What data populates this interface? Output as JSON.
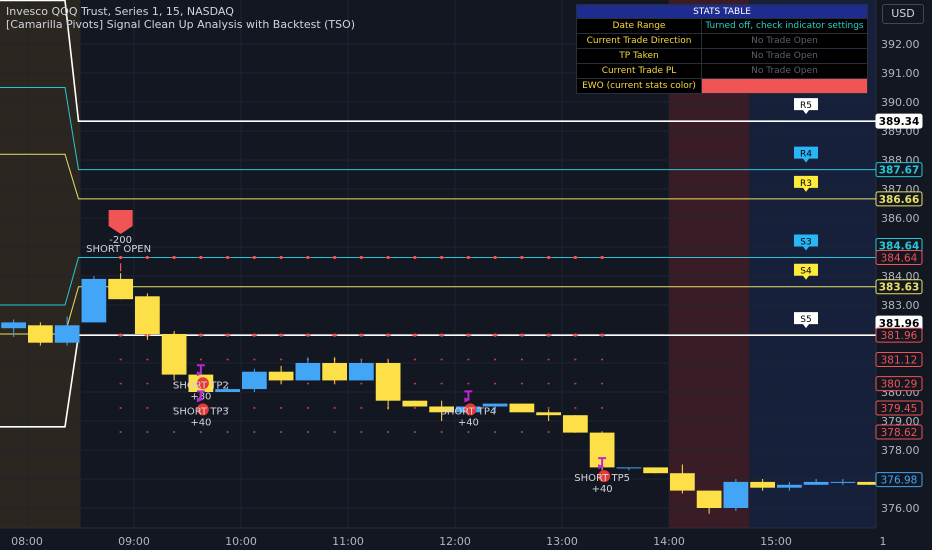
{
  "header": {
    "line1": "Invesco QQQ Trust, Series 1, 15, NASDAQ",
    "line2": "[Camarilla Pivots] Signal Clean Up Analysis with Backtest (TSO)"
  },
  "currency_button": "USD",
  "stats_table": {
    "title": "STATS TABLE",
    "rows": [
      {
        "key": "Date Range",
        "value": "Turned off, check indicator settings"
      },
      {
        "key": "Current Trade Direction",
        "value": "No Trade Open"
      },
      {
        "key": "TP Taken",
        "value": "No Trade Open"
      },
      {
        "key": "Current Trade PL",
        "value": "No Trade Open"
      },
      {
        "key": "EWO (current stats color)",
        "value": ""
      }
    ]
  },
  "colors": {
    "background": "#131722",
    "up": "#42a5f5",
    "down": "#fde047",
    "grid": "#1f2330",
    "pivot_white": "#ffffff",
    "pivot_cyan": "#26c6da",
    "pivot_yellow": "#e8e065",
    "marker_red": "#f05454",
    "zone_red": "#3a1c27",
    "zone_blue": "#16203a"
  },
  "chart_data": {
    "type": "candlestick",
    "ylim": [
      375.6,
      393.0
    ],
    "x_ticks": [
      "08:00",
      "09:00",
      "10:00",
      "11:00",
      "12:00",
      "13:00",
      "14:00",
      "15:00",
      "1"
    ],
    "y_ticks": [
      376.0,
      377.0,
      378.0,
      379.0,
      380.0,
      381.0,
      382.0,
      383.0,
      384.0,
      385.0,
      386.0,
      387.0,
      388.0,
      389.0,
      390.0,
      391.0,
      392.0
    ],
    "bars_per_hour": 4,
    "first_bar_time": "07:45",
    "session_shading": [
      {
        "from": "06:00",
        "to": "08:30",
        "color": "#2b2720"
      },
      {
        "from": "14:00",
        "to": "14:45",
        "color": "#3a1c27"
      },
      {
        "from": "14:45",
        "to": "16:00",
        "color": "#16203a"
      }
    ],
    "candles": [
      {
        "t": "07:45",
        "o": 382.2,
        "h": 382.5,
        "l": 381.9,
        "c": 382.4
      },
      {
        "t": "08:00",
        "o": 382.3,
        "h": 382.4,
        "l": 381.6,
        "c": 381.7
      },
      {
        "t": "08:15",
        "o": 381.7,
        "h": 382.6,
        "l": 381.6,
        "c": 382.3
      },
      {
        "t": "08:30",
        "o": 382.4,
        "h": 384.0,
        "l": 382.4,
        "c": 383.9
      },
      {
        "t": "08:45",
        "o": 383.9,
        "h": 384.1,
        "l": 383.2,
        "c": 383.2
      },
      {
        "t": "09:00",
        "o": 383.3,
        "h": 383.4,
        "l": 381.8,
        "c": 382.0
      },
      {
        "t": "09:15",
        "o": 382.0,
        "h": 382.1,
        "l": 380.4,
        "c": 380.6
      },
      {
        "t": "09:30",
        "o": 380.6,
        "h": 380.6,
        "l": 379.8,
        "c": 380.0
      },
      {
        "t": "09:45",
        "o": 380.0,
        "h": 380.2,
        "l": 380.0,
        "c": 380.1
      },
      {
        "t": "10:00",
        "o": 380.1,
        "h": 380.8,
        "l": 380.0,
        "c": 380.7
      },
      {
        "t": "10:15",
        "o": 380.7,
        "h": 380.9,
        "l": 380.3,
        "c": 380.4
      },
      {
        "t": "10:30",
        "o": 380.4,
        "h": 381.2,
        "l": 380.4,
        "c": 381.0
      },
      {
        "t": "10:45",
        "o": 381.0,
        "h": 381.2,
        "l": 380.3,
        "c": 380.4
      },
      {
        "t": "11:00",
        "o": 380.4,
        "h": 381.1,
        "l": 380.4,
        "c": 381.0
      },
      {
        "t": "11:15",
        "o": 381.0,
        "h": 381.1,
        "l": 379.4,
        "c": 379.7
      },
      {
        "t": "11:30",
        "o": 379.7,
        "h": 379.7,
        "l": 379.5,
        "c": 379.5
      },
      {
        "t": "11:45",
        "o": 379.5,
        "h": 379.7,
        "l": 379.0,
        "c": 379.3
      },
      {
        "t": "12:00",
        "o": 379.3,
        "h": 379.5,
        "l": 379.2,
        "c": 379.5
      },
      {
        "t": "12:15",
        "o": 379.5,
        "h": 379.6,
        "l": 379.3,
        "c": 379.6
      },
      {
        "t": "12:30",
        "o": 379.6,
        "h": 379.6,
        "l": 379.3,
        "c": 379.3
      },
      {
        "t": "12:45",
        "o": 379.3,
        "h": 379.4,
        "l": 379.0,
        "c": 379.2
      },
      {
        "t": "13:00",
        "o": 379.2,
        "h": 379.2,
        "l": 378.6,
        "c": 378.6
      },
      {
        "t": "13:15",
        "o": 378.6,
        "h": 378.6,
        "l": 377.3,
        "c": 377.4
      },
      {
        "t": "13:30",
        "o": 377.4,
        "h": 377.4,
        "l": 377.3,
        "c": 377.4
      },
      {
        "t": "13:45",
        "o": 377.4,
        "h": 377.4,
        "l": 377.2,
        "c": 377.2
      },
      {
        "t": "14:00",
        "o": 377.2,
        "h": 377.5,
        "l": 376.5,
        "c": 376.6
      },
      {
        "t": "14:15",
        "o": 376.6,
        "h": 376.6,
        "l": 375.8,
        "c": 376.0
      },
      {
        "t": "14:30",
        "o": 376.0,
        "h": 377.0,
        "l": 375.9,
        "c": 376.9
      },
      {
        "t": "14:45",
        "o": 376.9,
        "h": 377.0,
        "l": 376.6,
        "c": 376.7
      },
      {
        "t": "15:00",
        "o": 376.7,
        "h": 376.9,
        "l": 376.6,
        "c": 376.8
      },
      {
        "t": "15:15",
        "o": 376.8,
        "h": 377.0,
        "l": 376.8,
        "c": 376.9
      },
      {
        "t": "15:30",
        "o": 376.9,
        "h": 377.0,
        "l": 376.8,
        "c": 376.9
      },
      {
        "t": "15:45",
        "o": 376.9,
        "h": 376.9,
        "l": 376.8,
        "c": 376.8
      }
    ],
    "pivot_lines": [
      {
        "name": "R5",
        "value": 389.34,
        "color": "#ffffff",
        "prev": 393.5
      },
      {
        "name": "R4",
        "value": 387.67,
        "color": "#26c6da",
        "prev": 390.5
      },
      {
        "name": "R3",
        "value": 386.66,
        "color": "#e8e065",
        "prev": 388.2
      },
      {
        "name": "S3",
        "value": 384.64,
        "color": "#26c6da",
        "prev": 383.0
      },
      {
        "name": "S4",
        "value": 383.63,
        "color": "#e8e065",
        "prev": 382.0
      },
      {
        "name": "S5",
        "value": 381.96,
        "color": "#ffffff",
        "prev": 378.8
      }
    ],
    "pivot_price_labels": [
      "389.34",
      "387.67",
      "386.66",
      "384.64",
      "384.64",
      "383.63",
      "381.96",
      "381.96"
    ],
    "target_dotted_levels": [
      384.64,
      381.96,
      381.12,
      380.29,
      379.45,
      378.62
    ],
    "target_price_labels": [
      "384.64",
      "381.96",
      "381.12",
      "380.29",
      "379.45",
      "378.62"
    ],
    "last_price": "376.98",
    "signals": [
      {
        "t": "08:45",
        "label": "SHORT OPEN",
        "pl": "-200",
        "price": 384.3
      },
      {
        "t": "09:30",
        "label": "SHORT TP2",
        "pl": "+80",
        "price": 380.3
      },
      {
        "t": "09:30",
        "label": "SHORT TP3",
        "pl": "+40",
        "price": 379.4
      },
      {
        "t": "12:00",
        "label": "SHORT TP4",
        "pl": "+40",
        "price": 379.4
      },
      {
        "t": "13:15",
        "label": "SHORT TP5",
        "pl": "+40",
        "price": 377.1
      }
    ]
  }
}
